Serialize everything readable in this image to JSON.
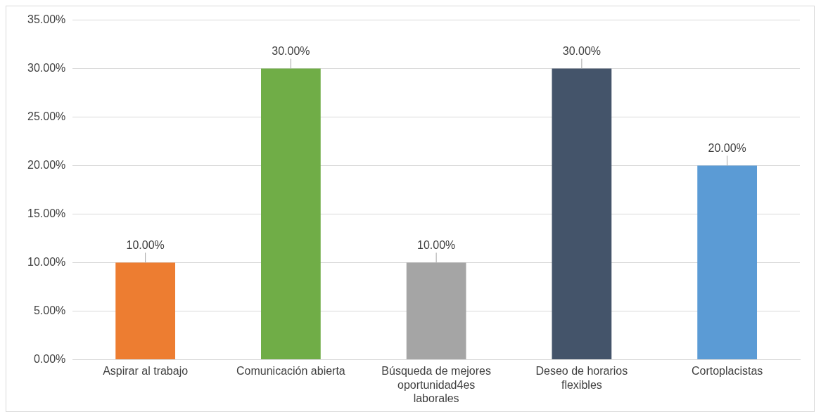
{
  "chart_data": {
    "type": "bar",
    "categories": [
      "Aspirar al trabajo",
      "Comunicación abierta",
      "Búsqueda de mejores oportunidad4es laborales",
      "Deseo de horarios flexibles",
      "Cortoplacistas"
    ],
    "values": [
      10,
      30,
      10,
      30,
      20
    ],
    "colors": [
      "#ed7d31",
      "#70ad47",
      "#a5a5a5",
      "#44546a",
      "#5b9bd5"
    ],
    "value_labels": [
      "10.00%",
      "30.00%",
      "10.00%",
      "30.00%",
      "20.00%"
    ],
    "ylim": [
      0,
      35
    ],
    "yticks": [
      {
        "value": 0,
        "label": "0.00%"
      },
      {
        "value": 5,
        "label": "5.00%"
      },
      {
        "value": 10,
        "label": "10.00%"
      },
      {
        "value": 15,
        "label": "15.00%"
      },
      {
        "value": 20,
        "label": "20.00%"
      },
      {
        "value": 25,
        "label": "25.00%"
      },
      {
        "value": 30,
        "label": "30.00%"
      },
      {
        "value": 35,
        "label": "35.00%"
      }
    ],
    "grid": "y",
    "legend": false
  }
}
